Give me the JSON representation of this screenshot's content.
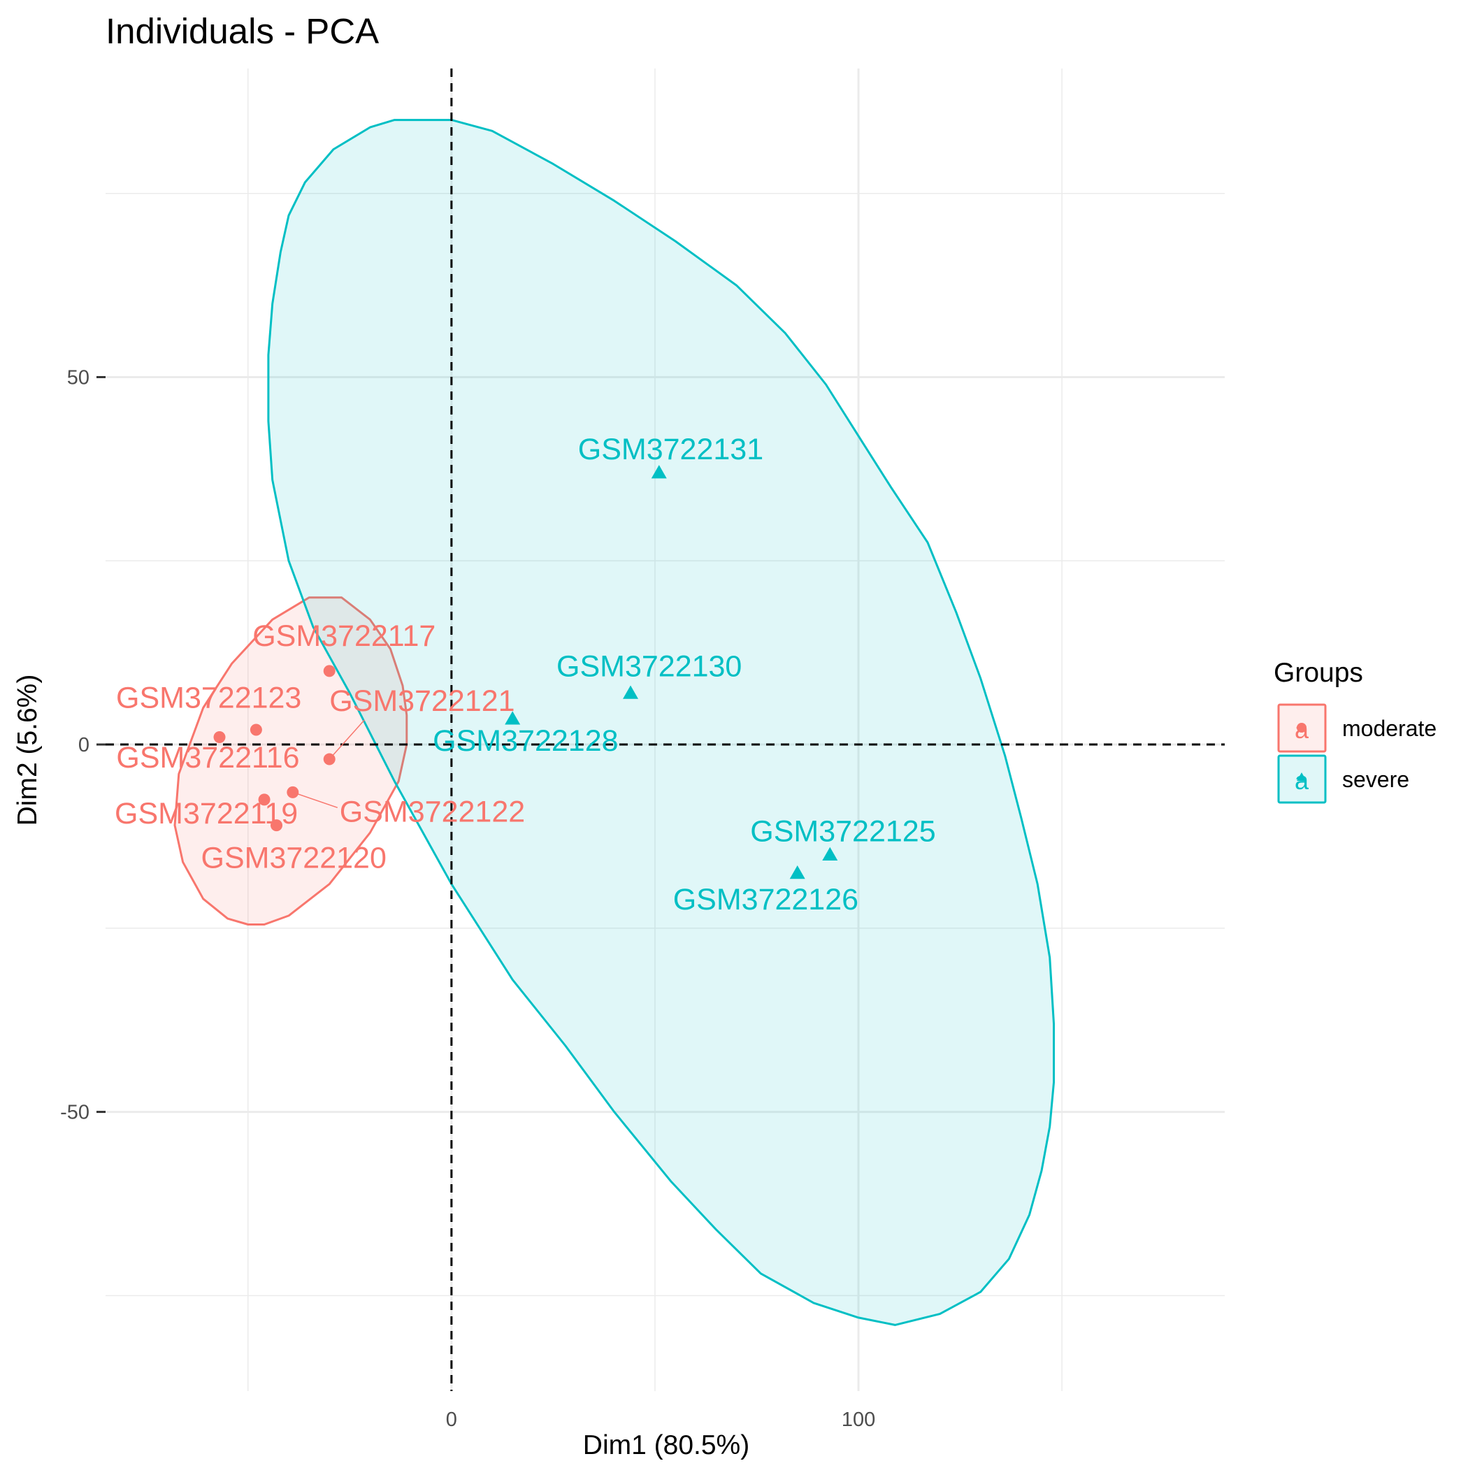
{
  "chart_data": {
    "type": "scatter",
    "title": "Individuals - PCA",
    "xlabel": "Dim1 (80.5%)",
    "ylabel": "Dim2 (5.6%)",
    "xlim": [
      -85,
      190
    ],
    "ylim": [
      -88,
      92
    ],
    "xticks": [
      0,
      100
    ],
    "yticks": [
      -50,
      0,
      50
    ],
    "x_minor_grid": [
      -50,
      50,
      150
    ],
    "y_minor_grid": [
      -75,
      -25,
      25,
      75
    ],
    "legend": {
      "title": "Groups",
      "position": "right",
      "entries": [
        {
          "label": "moderate",
          "group": "moderate",
          "key_glyph": "a"
        },
        {
          "label": "severe",
          "group": "severe",
          "key_glyph": "a"
        }
      ]
    },
    "groups": [
      {
        "name": "moderate",
        "color": "#F8766D",
        "shape": "circle"
      },
      {
        "name": "severe",
        "color": "#00BFC4",
        "shape": "triangle"
      }
    ],
    "series": [
      {
        "name": "moderate",
        "points": [
          {
            "id": "GSM3722117",
            "x": -30,
            "y": 10
          },
          {
            "id": "GSM3722123",
            "x": -57,
            "y": 1
          },
          {
            "id": "GSM3722121",
            "x": -30,
            "y": -2
          },
          {
            "id": "GSM3722116",
            "x": -48,
            "y": 2
          },
          {
            "id": "GSM3722119",
            "x": -46,
            "y": -7.5
          },
          {
            "id": "GSM3722122",
            "x": -39,
            "y": -6.5
          },
          {
            "id": "GSM3722120",
            "x": -43,
            "y": -11
          }
        ]
      },
      {
        "name": "severe",
        "points": [
          {
            "id": "GSM3722131",
            "x": 51,
            "y": 37
          },
          {
            "id": "GSM3722130",
            "x": 44,
            "y": 7
          },
          {
            "id": "GSM3722128",
            "x": 15,
            "y": 3.5
          },
          {
            "id": "GSM3722125",
            "x": 93,
            "y": -15
          },
          {
            "id": "GSM3722126",
            "x": 85,
            "y": -17.5
          }
        ]
      }
    ],
    "ellipses": [
      {
        "group": "moderate",
        "path": [
          [
            -50,
            -24.5
          ],
          [
            -46,
            -24.5
          ],
          [
            -40,
            -23.3
          ],
          [
            -30,
            -19
          ],
          [
            -20,
            -12
          ],
          [
            -13,
            -5
          ],
          [
            -11,
            0
          ],
          [
            -11,
            4
          ],
          [
            -12,
            8
          ],
          [
            -15,
            13
          ],
          [
            -20,
            17
          ],
          [
            -27,
            20
          ],
          [
            -35,
            20
          ],
          [
            -44,
            17
          ],
          [
            -54,
            11
          ],
          [
            -61,
            5
          ],
          [
            -67,
            -4
          ],
          [
            -68,
            -11
          ],
          [
            -66,
            -16
          ],
          [
            -61,
            -21
          ],
          [
            -55,
            -23.7
          ]
        ]
      },
      {
        "group": "severe",
        "path": [
          [
            -14,
            85
          ],
          [
            0,
            85
          ],
          [
            10,
            83.5
          ],
          [
            25,
            79
          ],
          [
            40,
            74
          ],
          [
            55,
            68.5
          ],
          [
            70,
            62.5
          ],
          [
            82,
            56
          ],
          [
            92,
            49
          ],
          [
            100,
            42
          ],
          [
            108,
            35
          ],
          [
            117,
            27.5
          ],
          [
            124,
            18
          ],
          [
            130,
            9
          ],
          [
            136,
            -1.5
          ],
          [
            140,
            -10
          ],
          [
            144,
            -19
          ],
          [
            147,
            -29
          ],
          [
            148,
            -38
          ],
          [
            148,
            -46
          ],
          [
            147,
            -52
          ],
          [
            145,
            -58
          ],
          [
            142,
            -64
          ],
          [
            137,
            -70
          ],
          [
            130,
            -74.5
          ],
          [
            120,
            -77.5
          ],
          [
            109,
            -79
          ],
          [
            100,
            -78
          ],
          [
            89,
            -76
          ],
          [
            76,
            -72
          ],
          [
            65,
            -66
          ],
          [
            54,
            -59.5
          ],
          [
            40,
            -50
          ],
          [
            28,
            -41
          ],
          [
            15,
            -32
          ],
          [
            0,
            -19
          ],
          [
            -14,
            -5
          ],
          [
            -25,
            7
          ],
          [
            -34,
            16
          ],
          [
            -40,
            25
          ],
          [
            -44,
            36
          ],
          [
            -45,
            44
          ],
          [
            -45,
            53
          ],
          [
            -44,
            60
          ],
          [
            -42,
            67
          ],
          [
            -40,
            72
          ],
          [
            -36,
            76.5
          ],
          [
            -29,
            81
          ],
          [
            -20,
            84
          ]
        ]
      }
    ],
    "reference_lines": {
      "x": 0,
      "y": 0
    }
  }
}
